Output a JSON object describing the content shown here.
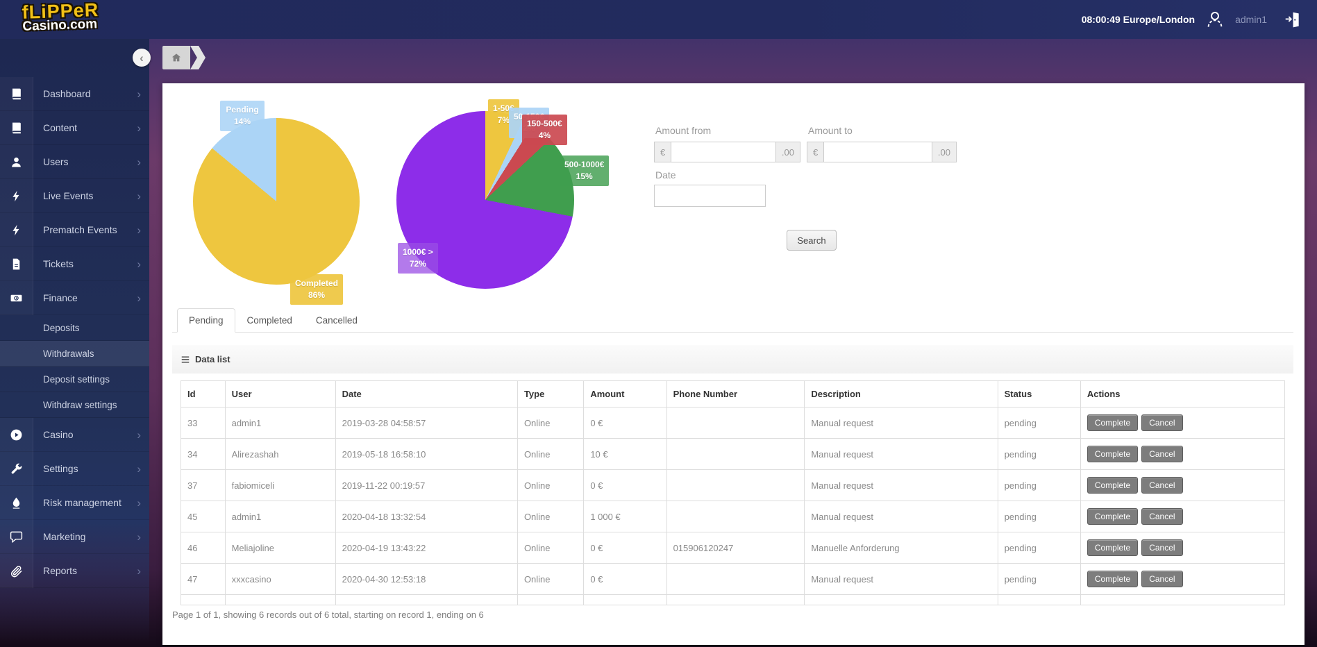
{
  "header": {
    "logo_line1": "fLiPPeR",
    "logo_line2": "Casino.com",
    "clock": "08:00:49 Europe/London",
    "username": "admin1",
    "avatar_icon": "user-avatar-icon",
    "logout_icon": "logout-door-icon"
  },
  "breadcrumb": {
    "collapse_icon": "chevron-left-icon",
    "home_icon": "home-icon",
    "collapse_glyph": "‹"
  },
  "sidebar": {
    "items": [
      {
        "label": "Dashboard",
        "icon": "book-icon"
      },
      {
        "label": "Content",
        "icon": "book-icon"
      },
      {
        "label": "Users",
        "icon": "user-icon"
      },
      {
        "label": "Live Events",
        "icon": "bolt-icon"
      },
      {
        "label": "Prematch Events",
        "icon": "bolt-icon"
      },
      {
        "label": "Tickets",
        "icon": "file-icon"
      },
      {
        "label": "Finance",
        "icon": "banknote-icon",
        "expanded": true,
        "submenu": [
          {
            "label": "Deposits",
            "active": false
          },
          {
            "label": "Withdrawals",
            "active": true
          },
          {
            "label": "Deposit settings",
            "active": false
          },
          {
            "label": "Withdraw settings",
            "active": false
          }
        ]
      },
      {
        "label": "Casino",
        "icon": "play-circle-icon"
      },
      {
        "label": "Settings",
        "icon": "wrench-icon"
      },
      {
        "label": "Risk management",
        "icon": "ink-drop-icon"
      },
      {
        "label": "Marketing",
        "icon": "chat-bubble-icon"
      },
      {
        "label": "Reports",
        "icon": "paperclip-icon"
      }
    ]
  },
  "chart_data": [
    {
      "type": "pie",
      "legend_position": "labels-on-chart",
      "slices": [
        {
          "label": "Completed",
          "pct_label": "86%",
          "value": 86,
          "color": "#eec63f"
        },
        {
          "label": "Pending",
          "pct_label": "14%",
          "value": 14,
          "color": "#abd4f6"
        }
      ]
    },
    {
      "type": "pie",
      "legend_position": "labels-on-chart",
      "slices": [
        {
          "label": "1-50€",
          "pct_label": "7%",
          "value": 7,
          "color": "#eec63f"
        },
        {
          "label": "50-150€",
          "pct_label": "2%",
          "value": 2,
          "color": "#abd4f6"
        },
        {
          "label": "150-500€",
          "pct_label": "4%",
          "value": 4,
          "color": "#cb4950"
        },
        {
          "label": "500-1000€",
          "pct_label": "15%",
          "value": 15,
          "color": "#409e4e"
        },
        {
          "label": "1000€ >",
          "pct_label": "72%",
          "value": 72,
          "color": "#8d2de9"
        }
      ]
    }
  ],
  "filter_form": {
    "amount_from_label": "Amount from",
    "amount_to_label": "Amount to",
    "currency_prefix": "€",
    "decimal_suffix": ".00",
    "amount_from_value": "",
    "amount_to_value": "",
    "date_label": "Date",
    "date_value": "",
    "search_label": "Search"
  },
  "tabs": {
    "items": [
      "Pending",
      "Completed",
      "Cancelled"
    ],
    "active": "Pending"
  },
  "data_list": {
    "title": "Data list",
    "list_icon": "hamburger-icon",
    "columns": [
      "Id",
      "User",
      "Date",
      "Type",
      "Amount",
      "Phone Number",
      "Description",
      "Status",
      "Actions"
    ],
    "rows": [
      [
        "33",
        "admin1",
        "2019-03-28 04:58:57",
        "Online",
        "0 €",
        "",
        "Manual request",
        "pending"
      ],
      [
        "34",
        "Alirezashah",
        "2019-05-18 16:58:10",
        "Online",
        "10 €",
        "",
        "Manual request",
        "pending"
      ],
      [
        "37",
        "fabiomiceli",
        "2019-11-22 00:19:57",
        "Online",
        "0 €",
        "",
        "Manual request",
        "pending"
      ],
      [
        "45",
        "admin1",
        "2020-04-18 13:32:54",
        "Online",
        "1 000 €",
        "",
        "Manual request",
        "pending"
      ],
      [
        "46",
        "Meliajoline",
        "2020-04-19 13:43:22",
        "Online",
        "0 €",
        "015906120247",
        "Manuelle Anforderung",
        "pending"
      ],
      [
        "47",
        "xxxcasino",
        "2020-04-30 12:53:18",
        "Online",
        "0 €",
        "",
        "Manual request",
        "pending"
      ]
    ],
    "action_labels": [
      "Complete",
      "Cancel"
    ],
    "pagination": "Page 1 of 1, showing 6 records out of 6 total, starting on record 1, ending on 6"
  },
  "colors": {
    "header_bg": "#222b5e",
    "sidebar_bg": "#1e2851",
    "page_bg": "#5c2f5a",
    "action_button": "#7d7d7d",
    "pie1_yellow": "#eec63f",
    "pie1_blue": "#abd4f6",
    "pie2_red": "#cb4950",
    "pie2_green": "#409e4e",
    "pie2_purple": "#8d2de9"
  }
}
